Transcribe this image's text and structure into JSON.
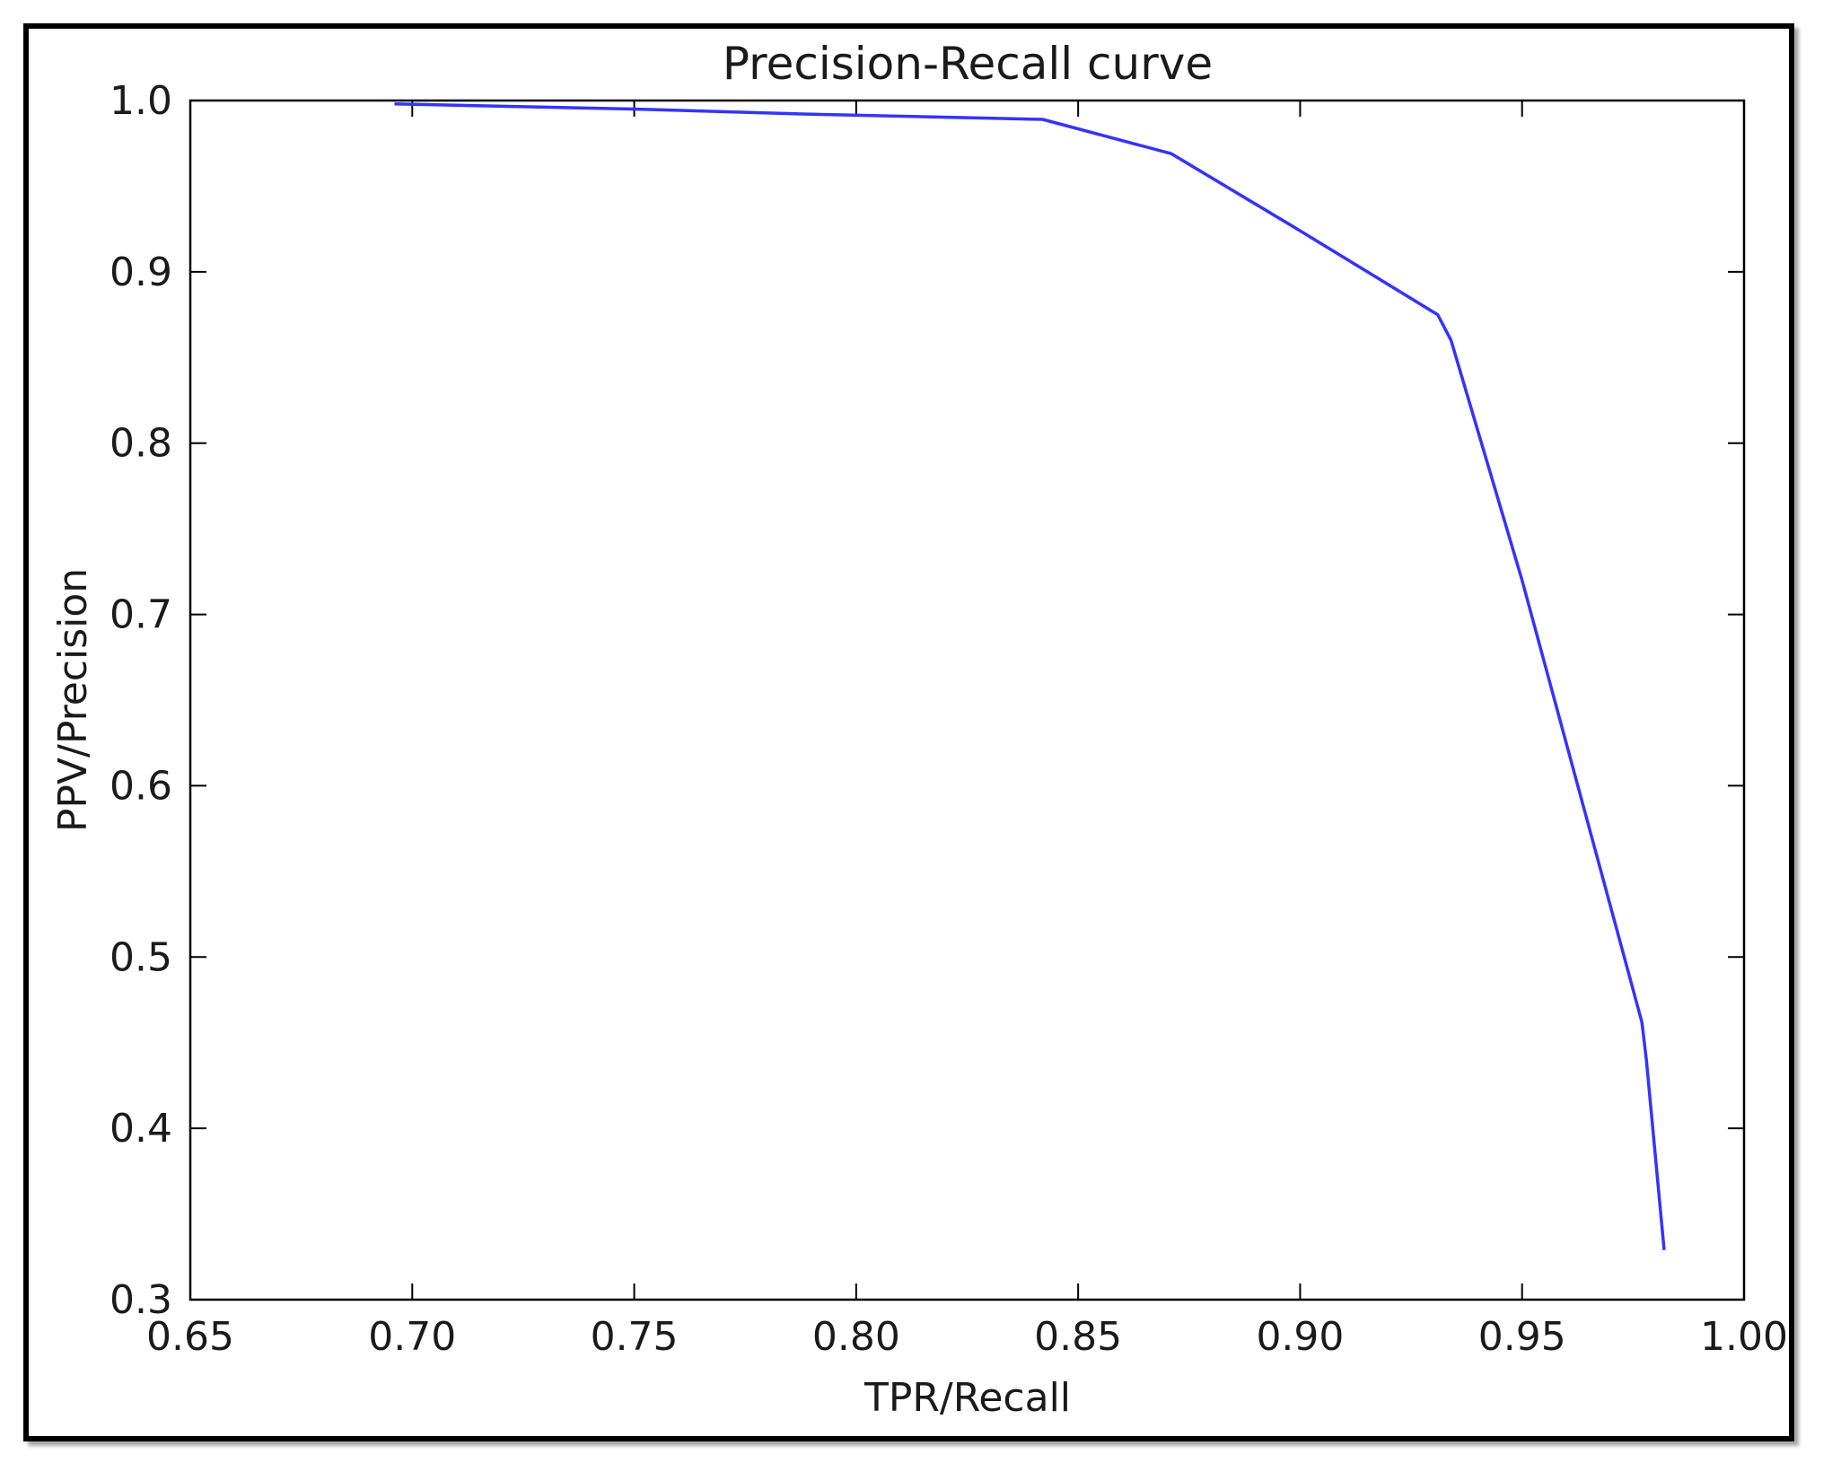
{
  "chart_data": {
    "type": "line",
    "title": "Precision-Recall curve",
    "xlabel": "TPR/Recall",
    "ylabel": "PPV/Precision",
    "xlim": [
      0.65,
      1.0
    ],
    "ylim": [
      0.3,
      1.0
    ],
    "xticks": [
      "0.65",
      "0.70",
      "0.75",
      "0.80",
      "0.85",
      "0.90",
      "0.95",
      "1.00"
    ],
    "yticks": [
      "0.3",
      "0.4",
      "0.5",
      "0.6",
      "0.7",
      "0.8",
      "0.9",
      "1.0"
    ],
    "grid": false,
    "legend": "none",
    "series": [
      {
        "color": "#3333ff",
        "x": [
          0.696,
          0.75,
          0.79,
          0.842,
          0.871,
          0.9,
          0.931,
          0.934,
          0.95,
          0.977,
          0.978,
          0.982
        ],
        "y": [
          0.998,
          0.995,
          0.992,
          0.989,
          0.969,
          0.924,
          0.875,
          0.86,
          0.72,
          0.462,
          0.44,
          0.329
        ]
      }
    ]
  }
}
